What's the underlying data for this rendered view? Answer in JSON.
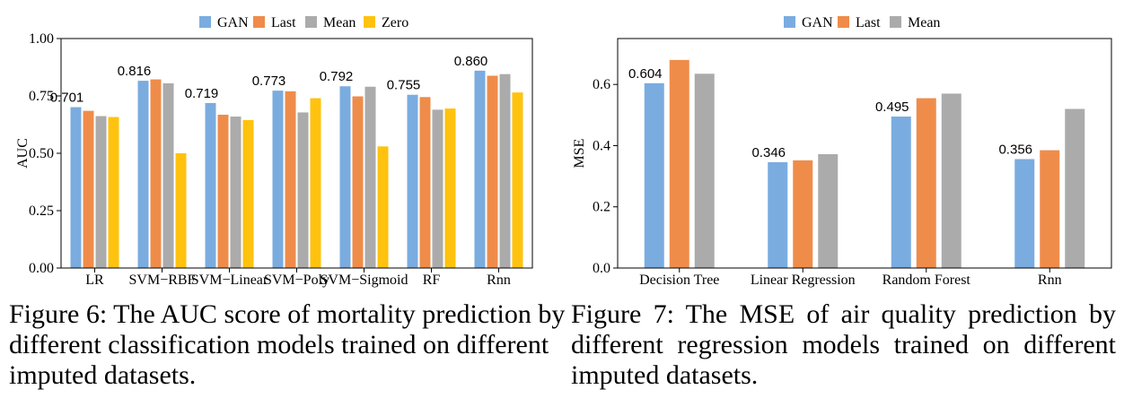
{
  "colors": {
    "GAN": "#7aace0",
    "Last": "#ef8c4a",
    "Mean": "#ababab",
    "Zero": "#ffc20e"
  },
  "chart_data": [
    {
      "type": "bar",
      "title": "",
      "xlabel": "",
      "ylabel": "AUC",
      "ylim": [
        0,
        1.0
      ],
      "yticks": [
        "0.00",
        "0.25",
        "0.50",
        "0.75",
        "1.00"
      ],
      "legend": "top",
      "categories": [
        "LR",
        "SVM−RBF",
        "SVM−Linear",
        "SVM−Poly",
        "SVM−Sigmoid",
        "RF",
        "Rnn"
      ],
      "series": [
        {
          "name": "GAN",
          "values": [
            0.701,
            0.816,
            0.719,
            0.773,
            0.792,
            0.755,
            0.86
          ]
        },
        {
          "name": "Last",
          "values": [
            0.685,
            0.822,
            0.668,
            0.77,
            0.748,
            0.745,
            0.838
          ]
        },
        {
          "name": "Mean",
          "values": [
            0.662,
            0.805,
            0.66,
            0.678,
            0.79,
            0.69,
            0.845
          ]
        },
        {
          "name": "Zero",
          "values": [
            0.658,
            0.5,
            0.645,
            0.74,
            0.53,
            0.695,
            0.765
          ]
        }
      ],
      "data_labels": [
        "0.701",
        "0.816",
        "0.719",
        "0.773",
        "0.792",
        "0.755",
        "0.860"
      ]
    },
    {
      "type": "bar",
      "title": "",
      "xlabel": "",
      "ylabel": "MSE",
      "ylim": [
        0,
        0.75
      ],
      "yticks": [
        "0.0",
        "0.2",
        "0.4",
        "0.6"
      ],
      "legend": "top",
      "categories": [
        "Decision Tree",
        "Linear Regression",
        "Random Forest",
        "Rnn"
      ],
      "series": [
        {
          "name": "GAN",
          "values": [
            0.604,
            0.346,
            0.495,
            0.356
          ]
        },
        {
          "name": "Last",
          "values": [
            0.68,
            0.352,
            0.555,
            0.385
          ]
        },
        {
          "name": "Mean",
          "values": [
            0.635,
            0.372,
            0.57,
            0.52
          ]
        }
      ],
      "data_labels": [
        "0.604",
        "0.346",
        "0.495",
        "0.356"
      ]
    }
  ],
  "captions": {
    "fig6": {
      "line1": "Figure 6: The AUC score of mortality prediction by",
      "line2": "different classification models trained on different",
      "line3": "imputed datasets."
    },
    "fig7": {
      "line1": "Figure 7:  The MSE of air quality prediction by",
      "line2": "different  regression  models  trained  on  different",
      "line3": "imputed datasets."
    }
  }
}
